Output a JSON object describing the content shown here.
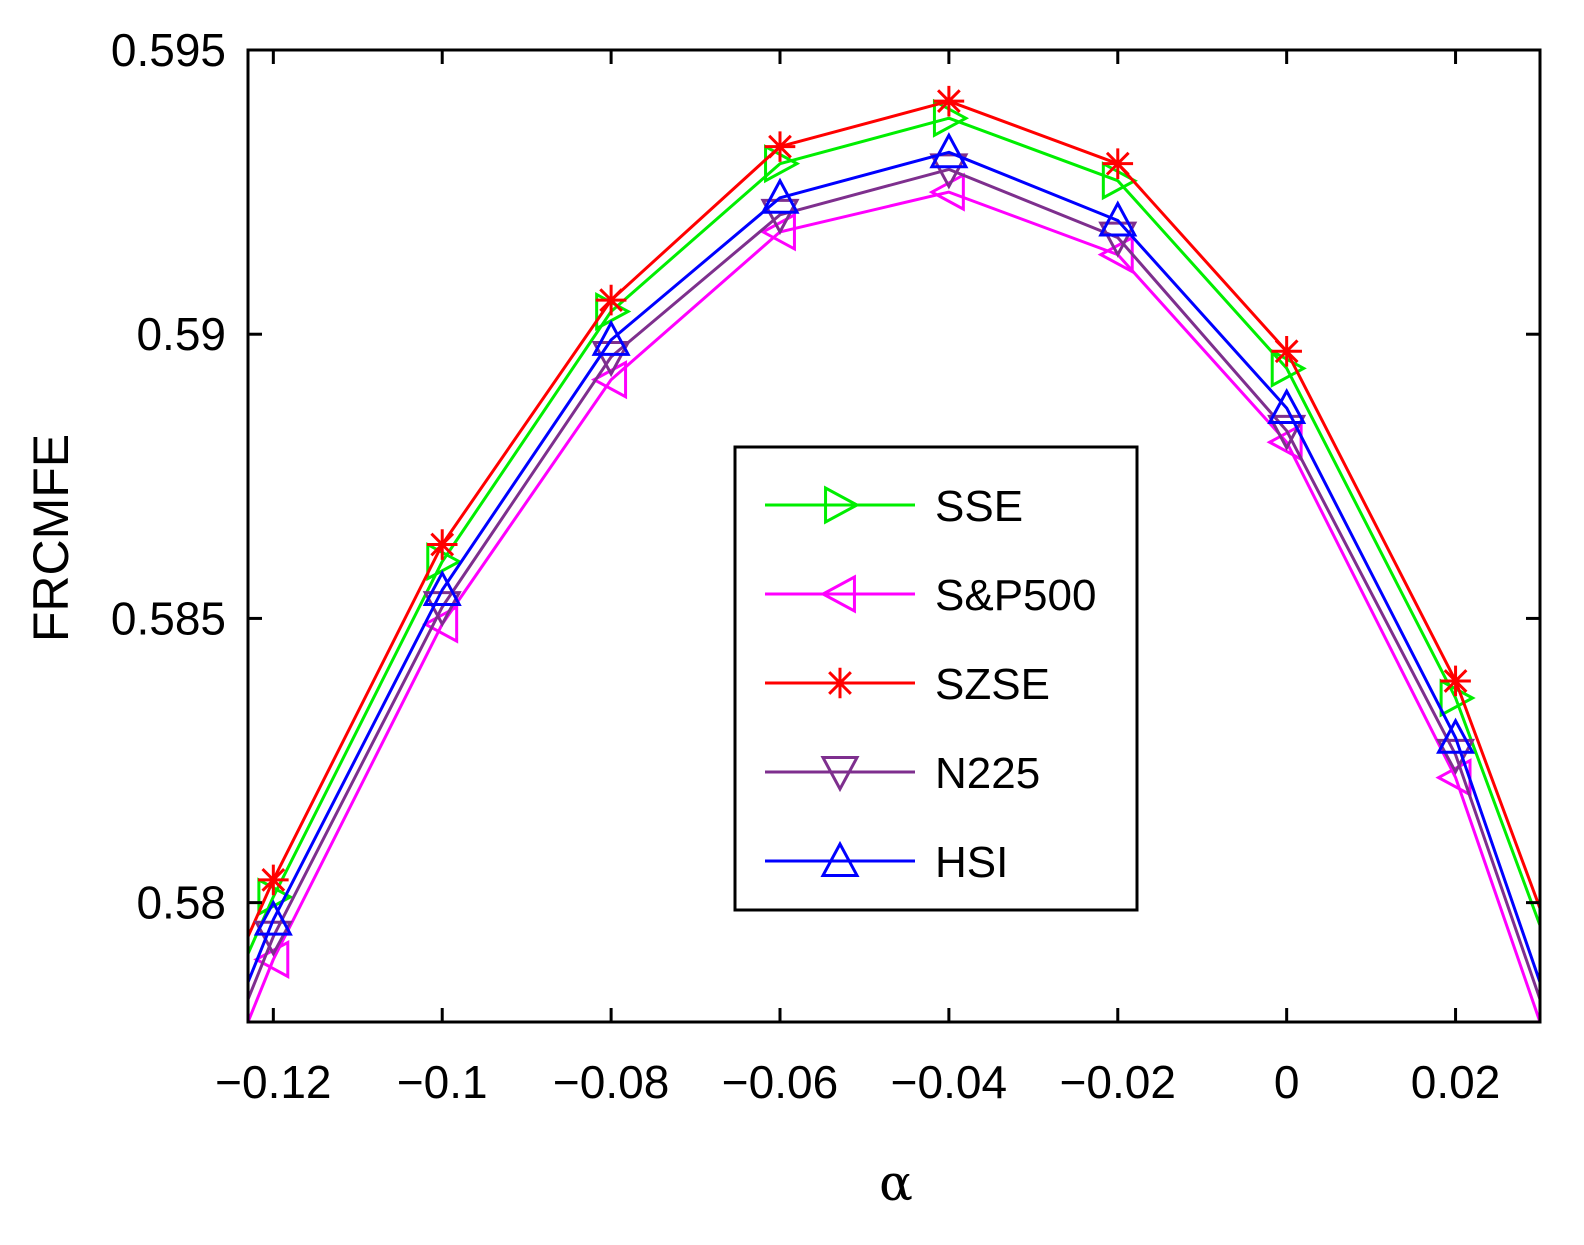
{
  "chart_data": {
    "type": "line",
    "title": "",
    "xlabel": "α",
    "ylabel": "FRCMFE",
    "xlim": [
      -0.123,
      0.03
    ],
    "ylim": [
      0.5779,
      0.595
    ],
    "x_ticks": [
      -0.12,
      -0.1,
      -0.08,
      -0.06,
      -0.04,
      -0.02,
      0,
      0.02
    ],
    "x_tick_labels": [
      "−0.12",
      "−0.1",
      "−0.08",
      "−0.06",
      "−0.04",
      "−0.02",
      "0",
      "0.02"
    ],
    "y_ticks": [
      0.58,
      0.585,
      0.59,
      0.595
    ],
    "y_tick_labels": [
      "0.58",
      "0.585",
      "0.59",
      "0.595"
    ],
    "grid": false,
    "legend_position": "center-right",
    "x": [
      -0.12,
      -0.1,
      -0.08,
      -0.06,
      -0.04,
      -0.02,
      0,
      0.02
    ],
    "series": [
      {
        "name": "SSE",
        "color": "#00ee00",
        "marker": "triangle-right",
        "values": [
          0.5801,
          0.586,
          0.5904,
          0.593,
          0.5938,
          0.5927,
          0.5894,
          0.5836
        ],
        "line_ends": [
          0.5791,
          0.5796
        ]
      },
      {
        "name": "S&P500",
        "color": "#ff00ff",
        "marker": "triangle-left",
        "values": [
          0.579,
          0.5849,
          0.5892,
          0.5918,
          0.5925,
          0.5914,
          0.5881,
          0.5822
        ],
        "line_ends": [
          0.5779,
          0.5779
        ]
      },
      {
        "name": "SZSE",
        "color": "#ff0000",
        "marker": "asterisk",
        "values": [
          0.5804,
          0.5863,
          0.5906,
          0.5933,
          0.5941,
          0.593,
          0.5897,
          0.5839
        ],
        "line_ends": [
          0.5794,
          0.5799
        ]
      },
      {
        "name": "N225",
        "color": "#7e2f8e",
        "marker": "triangle-down",
        "values": [
          0.5794,
          0.5852,
          0.5896,
          0.5921,
          0.5929,
          0.5917,
          0.5883,
          0.5826
        ],
        "line_ends": [
          0.5783,
          0.5783
        ]
      },
      {
        "name": "HSI",
        "color": "#0000ff",
        "marker": "triangle-up",
        "values": [
          0.5797,
          0.5855,
          0.5899,
          0.5924,
          0.5932,
          0.592,
          0.5887,
          0.5829
        ],
        "line_ends": [
          0.5786,
          0.5786
        ]
      }
    ]
  }
}
